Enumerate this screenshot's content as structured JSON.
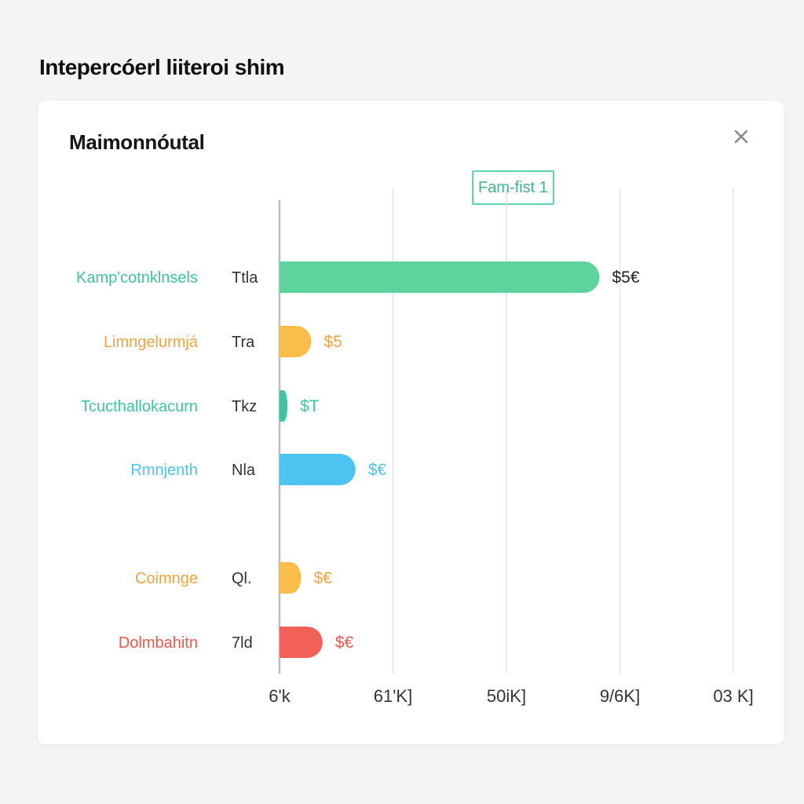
{
  "page": {
    "title": "Intepercóerl liiteroi shim"
  },
  "card": {
    "title": "Maimonnóutal",
    "close_icon": "close-icon",
    "legend_label": "Fam-fist 1"
  },
  "colors": {
    "green": "#5dd39e",
    "orange": "#fbbd4a",
    "teal": "#3dc59f",
    "blue": "#4cc3f1",
    "yellow": "#fbbd4a",
    "red": "#f26157",
    "grid": "#e4e4e4",
    "axis": "#bdbdbd"
  },
  "chart_data": {
    "type": "bar",
    "orientation": "horizontal",
    "categories": [
      "Kamp'cotnklnsels",
      "Limngelurmjá",
      "Tcucthallokacurn",
      "Rmnjenth",
      "Coimnge",
      "Dolmbahitn"
    ],
    "category_codes": [
      "Ttla",
      "Tra",
      "Tkz",
      "Nla",
      "Ql.",
      "7ld"
    ],
    "values": [
      282,
      28,
      7,
      67,
      19,
      38
    ],
    "value_labels": [
      "$5€",
      "$5",
      "$T",
      "$€",
      "$€",
      "$€"
    ],
    "bar_colors": [
      "#5dd39e",
      "#fbbd4a",
      "#3dc59f",
      "#4cc3f1",
      "#fbbd4a",
      "#f26157"
    ],
    "label_colors": [
      "#3dc59f",
      "#f0a340",
      "#3dc59f",
      "#4cc3f1",
      "#f0a340",
      "#f0564b"
    ],
    "xlim": [
      0,
      400
    ],
    "x_ticks": [
      0,
      100,
      200,
      300,
      400
    ],
    "x_tick_labels": [
      "6'k",
      "61'K]",
      "50iK]",
      "9/6K]",
      "03 K]"
    ],
    "grid": true,
    "legend": "top-center"
  }
}
